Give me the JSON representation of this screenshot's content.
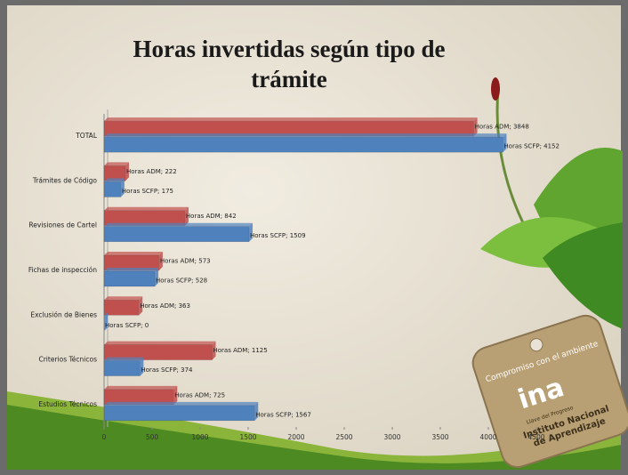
{
  "chart_data": {
    "type": "bar",
    "orientation": "horizontal",
    "title": "Horas invertidas según tipo de trámite",
    "categories": [
      "TOTAL",
      "Trámites de Código",
      "Revisiones de Cartel",
      "Fichas de inspección",
      "Exclusión de Bienes",
      "Criterios Técnicos",
      "Estudios Técnicos"
    ],
    "series": [
      {
        "name": "Horas ADM",
        "color": "#c0504d",
        "values": [
          3848,
          222,
          842,
          573,
          363,
          1125,
          725
        ],
        "value_labels": [
          "Horas ADM; 3848",
          "Horas ADM; 222",
          "Horas ADM; 842",
          "Horas ADM; 573",
          "Horas ADM; 363",
          "Horas ADM; 1125",
          "Horas ADM; 725"
        ]
      },
      {
        "name": "Horas SCFP",
        "color": "#4f81bd",
        "values": [
          4152,
          175,
          1509,
          528,
          0,
          374,
          1567
        ],
        "value_labels": [
          "Horas SCFP; 4152",
          "Horas SCFP; 175",
          "Horas SCFP; 1509",
          "Horas SCFP; 528",
          "Horas SCFP; 0",
          "Horas SCFP; 374",
          "Horas SCFP; 1567"
        ]
      }
    ],
    "xlim": [
      0,
      4500
    ],
    "xticks": [
      0,
      500,
      1000,
      1500,
      2000,
      2500,
      3000,
      3500,
      4000,
      4500
    ]
  },
  "logo": {
    "slogan": "Compromiso con el ambiente",
    "brand": "ina",
    "motto": "Llave del Progreso",
    "name_1": "Instituto Nacional",
    "name_2": "de Aprendizaje"
  }
}
